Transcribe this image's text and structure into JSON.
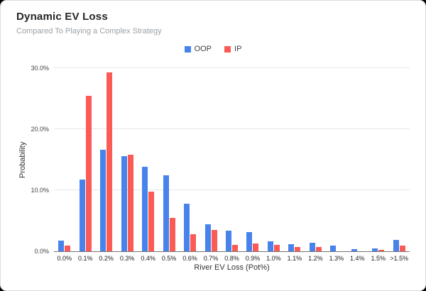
{
  "header": {
    "title": "Dynamic EV Loss",
    "subtitle": "Compared To Playing a Complex Strategy"
  },
  "chart_data": {
    "type": "bar",
    "title": "Dynamic EV Loss",
    "subtitle": "Compared To Playing a Complex Strategy",
    "xlabel": "River EV Loss (Pot%)",
    "ylabel": "Probability",
    "ylim": [
      0,
      30
    ],
    "grid": true,
    "legend_position": "top-center",
    "yticks": [
      {
        "value": 0,
        "label": "0.0%"
      },
      {
        "value": 10,
        "label": "10.0%"
      },
      {
        "value": 20,
        "label": "20.0%"
      },
      {
        "value": 30,
        "label": "30.0%"
      }
    ],
    "categories": [
      "0.0%",
      "0.1%",
      "0.2%",
      "0.3%",
      "0.4%",
      "0.5%",
      "0.6%",
      "0.7%",
      "0.8%",
      "0.9%",
      "1.0%",
      "1.1%",
      "1.2%",
      "1.3%",
      "1.4%",
      "1.5%",
      ">1.5%"
    ],
    "series": [
      {
        "name": "OOP",
        "color": "#4783EB",
        "values": [
          1.7,
          11.8,
          16.6,
          15.6,
          13.8,
          12.5,
          7.8,
          4.4,
          3.4,
          3.1,
          1.6,
          1.2,
          1.4,
          0.9,
          0.4,
          0.5,
          1.9
        ]
      },
      {
        "name": "IP",
        "color": "#FB5A55",
        "values": [
          0.9,
          25.5,
          29.3,
          15.8,
          9.8,
          5.5,
          2.8,
          3.5,
          1.1,
          1.3,
          1.0,
          0.7,
          0.7,
          0.0,
          0.0,
          0.2,
          0.9
        ]
      }
    ]
  }
}
